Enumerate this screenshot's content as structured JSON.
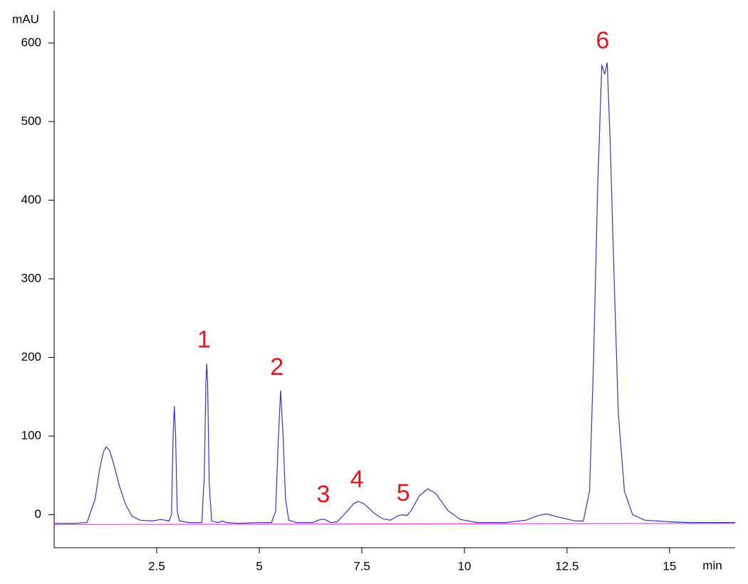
{
  "chart_data": {
    "type": "line",
    "y_label": "mAU",
    "x_label": "min",
    "xlim": [
      0,
      16.6
    ],
    "ylim": [
      -42,
      641
    ],
    "xticks": [
      2.5,
      5,
      7.5,
      10,
      12.5,
      15
    ],
    "yticks": [
      0,
      100,
      200,
      300,
      400,
      500,
      600
    ],
    "annotation_color": "#e8141a",
    "annotations": [
      {
        "text": "1",
        "x": 3.65,
        "y": 221
      },
      {
        "text": "2",
        "x": 5.43,
        "y": 186
      },
      {
        "text": "3",
        "x": 6.56,
        "y": 24
      },
      {
        "text": "4",
        "x": 7.38,
        "y": 43
      },
      {
        "text": "5",
        "x": 8.51,
        "y": 26
      },
      {
        "text": "6",
        "x": 13.37,
        "y": 601
      }
    ],
    "series": [
      {
        "color": "#3434c4",
        "x": [
          0.0,
          0.5,
          0.8,
          1.0,
          1.1,
          1.2,
          1.27,
          1.35,
          1.45,
          1.6,
          1.75,
          1.9,
          2.1,
          2.4,
          2.6,
          2.8,
          2.86,
          2.9,
          2.93,
          2.96,
          3.0,
          3.05,
          3.3,
          3.6,
          3.66,
          3.7,
          3.72,
          3.74,
          3.78,
          3.84,
          4.0,
          4.1,
          4.2,
          4.5,
          5.0,
          5.3,
          5.4,
          5.46,
          5.52,
          5.58,
          5.64,
          5.72,
          5.9,
          6.3,
          6.5,
          6.6,
          6.75,
          6.9,
          7.1,
          7.3,
          7.41,
          7.55,
          7.8,
          8.0,
          8.2,
          8.4,
          8.5,
          8.6,
          8.7,
          8.9,
          9.11,
          9.3,
          9.6,
          9.9,
          10.3,
          11.0,
          11.5,
          11.8,
          12.0,
          12.3,
          12.7,
          12.9,
          13.05,
          13.15,
          13.25,
          13.35,
          13.42,
          13.48,
          13.55,
          13.65,
          13.75,
          13.9,
          14.1,
          14.4,
          15.0,
          15.5,
          16.0,
          16.6
        ],
        "values": [
          -11,
          -11,
          -10,
          20,
          55,
          80,
          86,
          82,
          65,
          35,
          12,
          -2,
          -7,
          -8,
          -6,
          -8,
          0,
          100,
          138,
          100,
          5,
          -8,
          -10,
          -10,
          50,
          170,
          192,
          170,
          40,
          -8,
          -10,
          -8,
          -10,
          -11,
          -10,
          -10,
          5,
          90,
          158,
          100,
          20,
          -7,
          -10,
          -10,
          -6,
          -6,
          -10,
          -9,
          2,
          14,
          17,
          14,
          2,
          -5,
          -7,
          -1,
          0,
          -1,
          5,
          24,
          33,
          27,
          5,
          -6,
          -10,
          -10,
          -7,
          -1,
          1,
          -3,
          -8,
          -8,
          30,
          200,
          420,
          572,
          560,
          575,
          480,
          300,
          130,
          30,
          0,
          -7,
          -9,
          -10,
          -10,
          -10
        ]
      },
      {
        "color": "#e040e0",
        "x": [
          0.0,
          16.6
        ],
        "values": [
          -12.5,
          -11
        ]
      }
    ]
  }
}
